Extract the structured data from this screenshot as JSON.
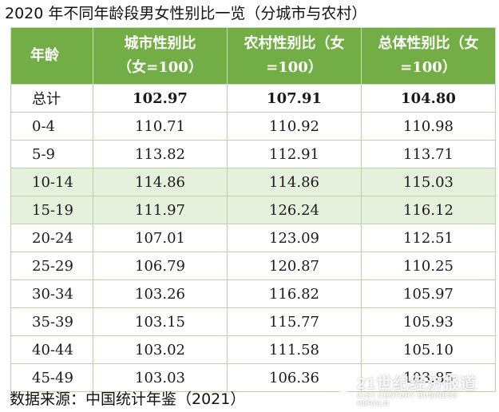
{
  "title": "2020 年不同年龄段男女性别比一览（分城市与农村）",
  "table": {
    "headers": [
      "年龄",
      "城市性别比（女=100）",
      "农村性别比（女=100）",
      "总体性别比（女=100）"
    ],
    "header_lines": [
      [
        "年龄"
      ],
      [
        "城市性别比",
        "（女=100）"
      ],
      [
        "农村性别比（女",
        "=100）"
      ],
      [
        "总体性别比（女",
        "=100）"
      ]
    ],
    "rows": [
      [
        "总计",
        "102.97",
        "107.91",
        "104.80"
      ],
      [
        "0-4",
        "110.71",
        "110.92",
        "110.98"
      ],
      [
        "5-9",
        "113.82",
        "112.91",
        "113.71"
      ],
      [
        "10-14",
        "114.86",
        "114.86",
        "115.03"
      ],
      [
        "15-19",
        "111.97",
        "126.24",
        "116.12"
      ],
      [
        "20-24",
        "107.01",
        "123.09",
        "112.51"
      ],
      [
        "25-29",
        "106.79",
        "120.87",
        "110.25"
      ],
      [
        "30-34",
        "103.26",
        "116.82",
        "105.97"
      ],
      [
        "35-39",
        "103.15",
        "115.77",
        "105.93"
      ],
      [
        "40-44",
        "103.02",
        "111.58",
        "105.10"
      ],
      [
        "45-49",
        "103.03",
        "106.36",
        "103.85"
      ]
    ],
    "highlighted_rows": [
      "10-14",
      "15-19"
    ]
  },
  "source": "数据来源：中国统计年鉴（2021）",
  "watermark": {
    "name": "21世纪经济报道",
    "sub": "21ST CENTURY BUSINESS HERALD"
  },
  "colors": {
    "header_bg": "#72ad46",
    "header_text": "#ffffff",
    "highlight_bg": "#e5f1dd",
    "border": "#b9d3a3"
  }
}
